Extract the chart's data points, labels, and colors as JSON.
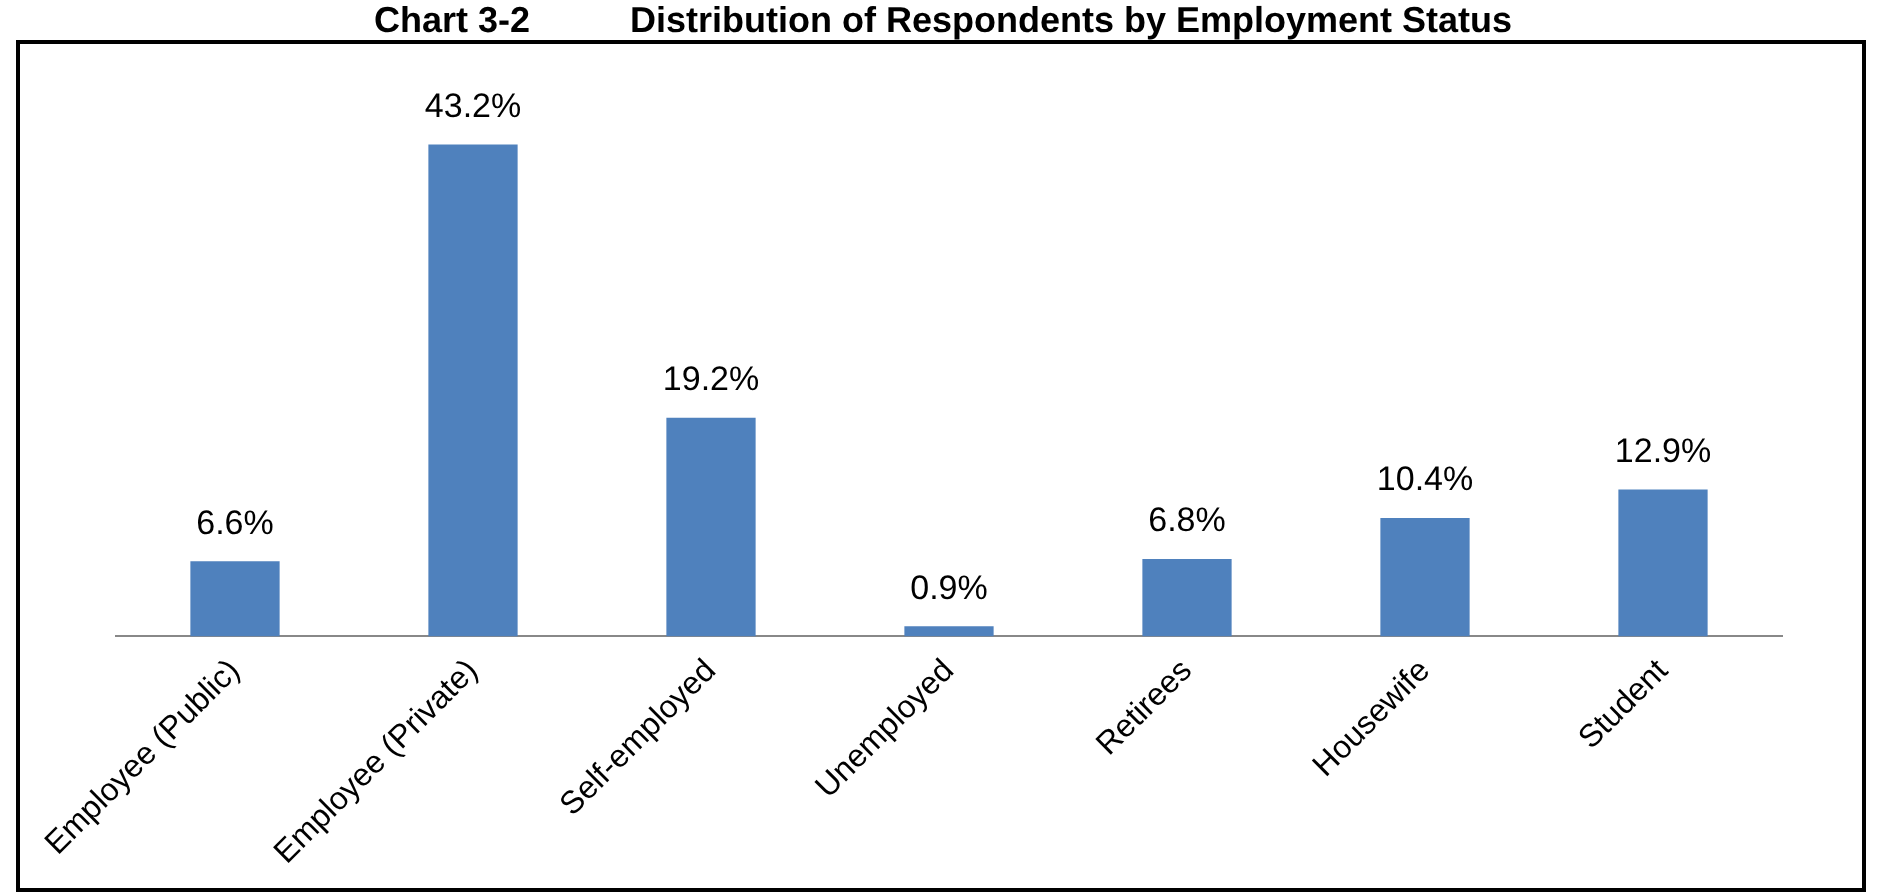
{
  "chart_data": {
    "type": "bar",
    "title": "Chart 3-2          Distribution of Respondents by Employment Status",
    "categories": [
      "Employee (Public)",
      "Employee (Private)",
      "Self-employed",
      "Unemployed",
      "Retirees",
      "Housewife",
      "Student"
    ],
    "values": [
      6.6,
      43.2,
      19.2,
      0.9,
      6.8,
      10.4,
      12.9
    ],
    "value_labels": [
      "6.6%",
      "43.2%",
      "19.2%",
      "0.9%",
      "6.8%",
      "10.4%",
      "12.9%"
    ],
    "color": "#4f81bd",
    "grid": false,
    "legend": false
  }
}
